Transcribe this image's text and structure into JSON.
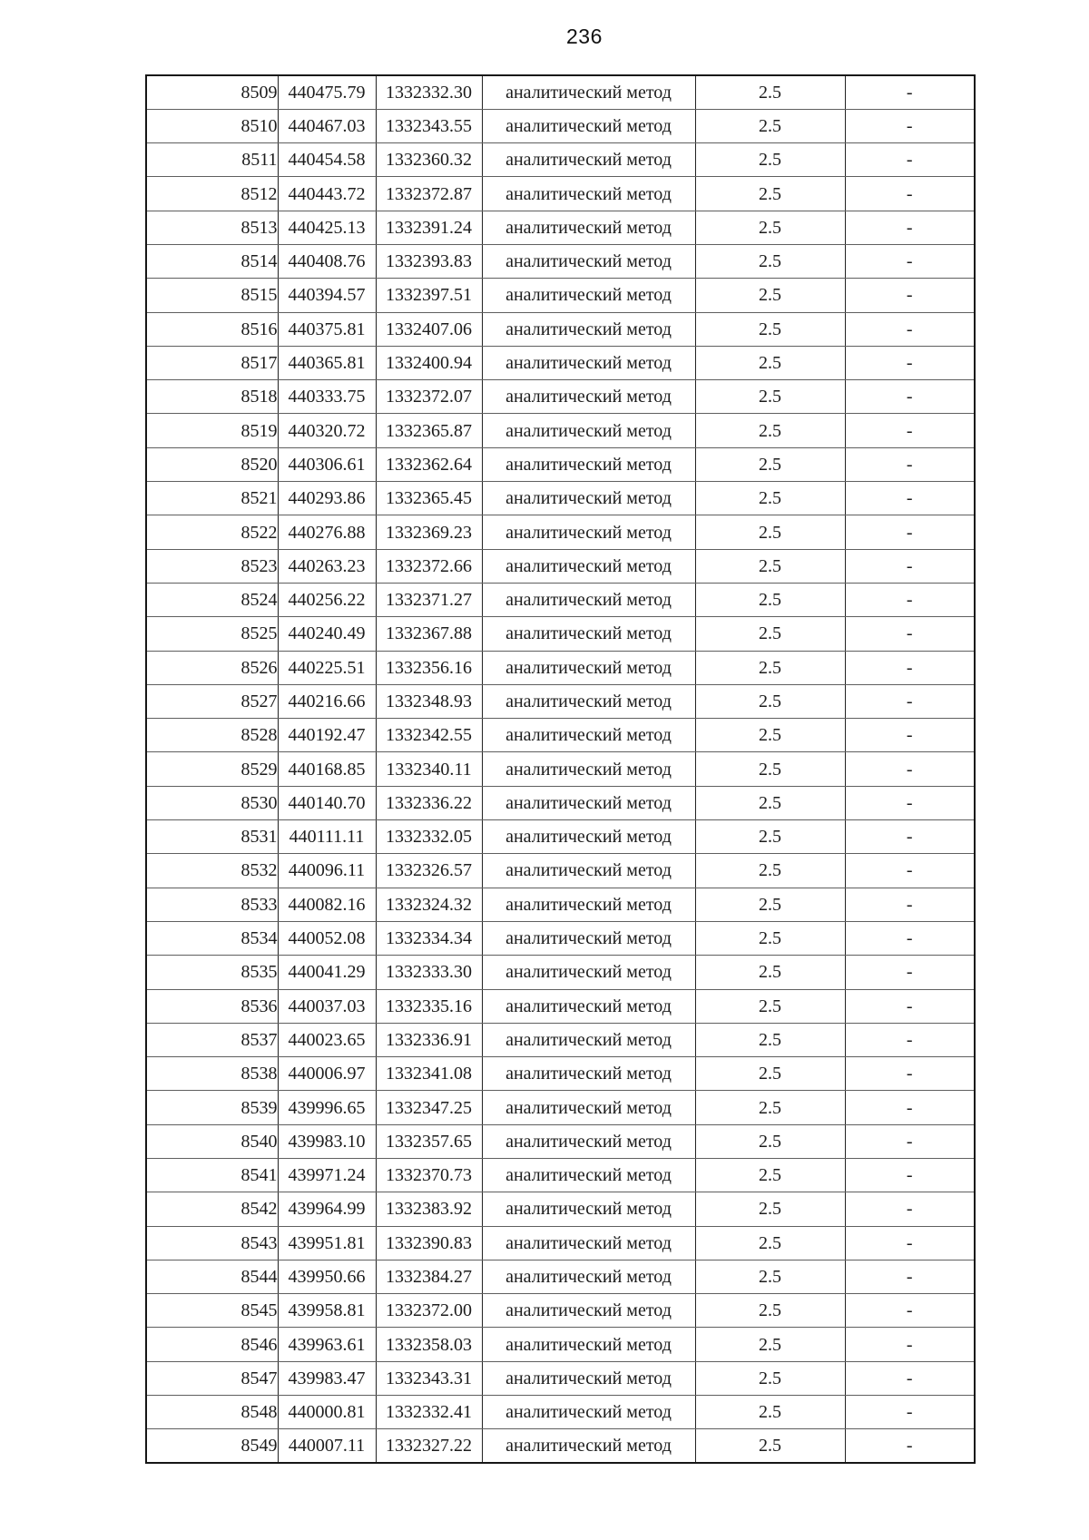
{
  "page": {
    "number": "236"
  },
  "table": {
    "columns": [
      "point-number-cell",
      "x-coordinate-cell",
      "y-coordinate-cell",
      "method-cell",
      "accuracy-cell",
      "note-cell"
    ],
    "rows": [
      [
        "8509",
        "440475.79",
        "1332332.30",
        "аналитический метод",
        "2.5",
        "-"
      ],
      [
        "8510",
        "440467.03",
        "1332343.55",
        "аналитический метод",
        "2.5",
        "-"
      ],
      [
        "8511",
        "440454.58",
        "1332360.32",
        "аналитический метод",
        "2.5",
        "-"
      ],
      [
        "8512",
        "440443.72",
        "1332372.87",
        "аналитический метод",
        "2.5",
        "-"
      ],
      [
        "8513",
        "440425.13",
        "1332391.24",
        "аналитический метод",
        "2.5",
        "-"
      ],
      [
        "8514",
        "440408.76",
        "1332393.83",
        "аналитический метод",
        "2.5",
        "-"
      ],
      [
        "8515",
        "440394.57",
        "1332397.51",
        "аналитический метод",
        "2.5",
        "-"
      ],
      [
        "8516",
        "440375.81",
        "1332407.06",
        "аналитический метод",
        "2.5",
        "-"
      ],
      [
        "8517",
        "440365.81",
        "1332400.94",
        "аналитический метод",
        "2.5",
        "-"
      ],
      [
        "8518",
        "440333.75",
        "1332372.07",
        "аналитический метод",
        "2.5",
        "-"
      ],
      [
        "8519",
        "440320.72",
        "1332365.87",
        "аналитический метод",
        "2.5",
        "-"
      ],
      [
        "8520",
        "440306.61",
        "1332362.64",
        "аналитический метод",
        "2.5",
        "-"
      ],
      [
        "8521",
        "440293.86",
        "1332365.45",
        "аналитический метод",
        "2.5",
        "-"
      ],
      [
        "8522",
        "440276.88",
        "1332369.23",
        "аналитический метод",
        "2.5",
        "-"
      ],
      [
        "8523",
        "440263.23",
        "1332372.66",
        "аналитический метод",
        "2.5",
        "-"
      ],
      [
        "8524",
        "440256.22",
        "1332371.27",
        "аналитический метод",
        "2.5",
        "-"
      ],
      [
        "8525",
        "440240.49",
        "1332367.88",
        "аналитический метод",
        "2.5",
        "-"
      ],
      [
        "8526",
        "440225.51",
        "1332356.16",
        "аналитический метод",
        "2.5",
        "-"
      ],
      [
        "8527",
        "440216.66",
        "1332348.93",
        "аналитический метод",
        "2.5",
        "-"
      ],
      [
        "8528",
        "440192.47",
        "1332342.55",
        "аналитический метод",
        "2.5",
        "-"
      ],
      [
        "8529",
        "440168.85",
        "1332340.11",
        "аналитический метод",
        "2.5",
        "-"
      ],
      [
        "8530",
        "440140.70",
        "1332336.22",
        "аналитический метод",
        "2.5",
        "-"
      ],
      [
        "8531",
        "440111.11",
        "1332332.05",
        "аналитический метод",
        "2.5",
        "-"
      ],
      [
        "8532",
        "440096.11",
        "1332326.57",
        "аналитический метод",
        "2.5",
        "-"
      ],
      [
        "8533",
        "440082.16",
        "1332324.32",
        "аналитический метод",
        "2.5",
        "-"
      ],
      [
        "8534",
        "440052.08",
        "1332334.34",
        "аналитический метод",
        "2.5",
        "-"
      ],
      [
        "8535",
        "440041.29",
        "1332333.30",
        "аналитический метод",
        "2.5",
        "-"
      ],
      [
        "8536",
        "440037.03",
        "1332335.16",
        "аналитический метод",
        "2.5",
        "-"
      ],
      [
        "8537",
        "440023.65",
        "1332336.91",
        "аналитический метод",
        "2.5",
        "-"
      ],
      [
        "8538",
        "440006.97",
        "1332341.08",
        "аналитический метод",
        "2.5",
        "-"
      ],
      [
        "8539",
        "439996.65",
        "1332347.25",
        "аналитический метод",
        "2.5",
        "-"
      ],
      [
        "8540",
        "439983.10",
        "1332357.65",
        "аналитический метод",
        "2.5",
        "-"
      ],
      [
        "8541",
        "439971.24",
        "1332370.73",
        "аналитический метод",
        "2.5",
        "-"
      ],
      [
        "8542",
        "439964.99",
        "1332383.92",
        "аналитический метод",
        "2.5",
        "-"
      ],
      [
        "8543",
        "439951.81",
        "1332390.83",
        "аналитический метод",
        "2.5",
        "-"
      ],
      [
        "8544",
        "439950.66",
        "1332384.27",
        "аналитический метод",
        "2.5",
        "-"
      ],
      [
        "8545",
        "439958.81",
        "1332372.00",
        "аналитический метод",
        "2.5",
        "-"
      ],
      [
        "8546",
        "439963.61",
        "1332358.03",
        "аналитический метод",
        "2.5",
        "-"
      ],
      [
        "8547",
        "439983.47",
        "1332343.31",
        "аналитический метод",
        "2.5",
        "-"
      ],
      [
        "8548",
        "440000.81",
        "1332332.41",
        "аналитический метод",
        "2.5",
        "-"
      ],
      [
        "8549",
        "440007.11",
        "1332327.22",
        "аналитический метод",
        "2.5",
        "-"
      ]
    ]
  }
}
